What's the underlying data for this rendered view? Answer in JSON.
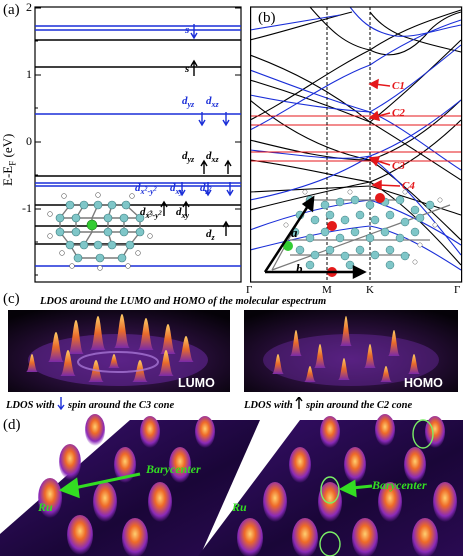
{
  "panels": {
    "a": "(a)",
    "b": "(b)",
    "c": "(c)",
    "d": "(d)"
  },
  "panel_a": {
    "y_axis_label": "E-E",
    "y_axis_sub": "F",
    "y_axis_unit": "(eV)",
    "y_ticks": [
      "2",
      "1",
      "0",
      "-1"
    ],
    "orbital_labels": {
      "s_down": "s",
      "s_up": "s",
      "dyz_down": "d",
      "dxz_down": "d",
      "dyz_up": "d",
      "dxz_up": "d",
      "dx2y2_up": "d",
      "dxy_up": "d",
      "dz_up": "d",
      "dx2y2_down": "d",
      "dxy_down": "d",
      "dz2_down": "d"
    },
    "colors": {
      "spin_up": "#000000",
      "spin_down": "#1a2ed8"
    }
  },
  "panel_b": {
    "k_labels": [
      "Γ",
      "M",
      "K",
      "Γ"
    ],
    "cones": [
      "C1",
      "C2",
      "C3",
      "C4"
    ],
    "lattice_vectors": [
      "a",
      "b"
    ],
    "cone_color": "#e4171b"
  },
  "panel_c": {
    "caption": "LDOS around the LUMO and HOMO of the molecular espectrum",
    "lumo": "LUMO",
    "homo": "HOMO"
  },
  "panel_d": {
    "caption_left": "LDOS with",
    "caption_left_rest": "spin around the C3 cone",
    "caption_right": "LDOS with",
    "caption_right_rest": "spin around the C2 cone",
    "barycenter": "Barycenter",
    "ru": "Ru",
    "barycenter_right": "Barycenter",
    "ru_right": "Ru"
  }
}
